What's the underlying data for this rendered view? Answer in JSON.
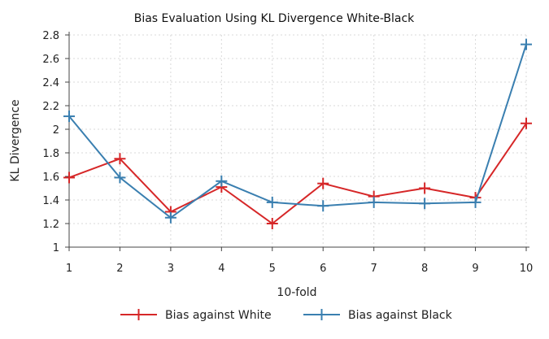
{
  "chart_data": {
    "type": "line",
    "title": "Bias Evaluation Using KL Divergence White-Black",
    "xlabel": "10-fold",
    "ylabel": "KL Divergence",
    "x": [
      1,
      2,
      3,
      4,
      5,
      6,
      7,
      8,
      9,
      10
    ],
    "x_ticks": [
      "1",
      "2",
      "3",
      "4",
      "5",
      "6",
      "7",
      "8",
      "9",
      "10"
    ],
    "y_ticks": [
      "1",
      "1.2",
      "1.4",
      "1.6",
      "1.8",
      "2",
      "2.2",
      "2.4",
      "2.6",
      "2.8"
    ],
    "xlim": [
      1,
      10
    ],
    "ylim": [
      1,
      2.8
    ],
    "grid": true,
    "legend_position": "bottom",
    "series": [
      {
        "name": "Bias against White",
        "color": "#d62728",
        "marker": "plus",
        "values": [
          1.59,
          1.75,
          1.3,
          1.51,
          1.2,
          1.54,
          1.43,
          1.5,
          1.42,
          2.05
        ]
      },
      {
        "name": "Bias against Black",
        "color": "#3a7fb0",
        "marker": "plus",
        "values": [
          2.11,
          1.59,
          1.25,
          1.56,
          1.38,
          1.35,
          1.38,
          1.37,
          1.38,
          2.72
        ]
      }
    ]
  }
}
